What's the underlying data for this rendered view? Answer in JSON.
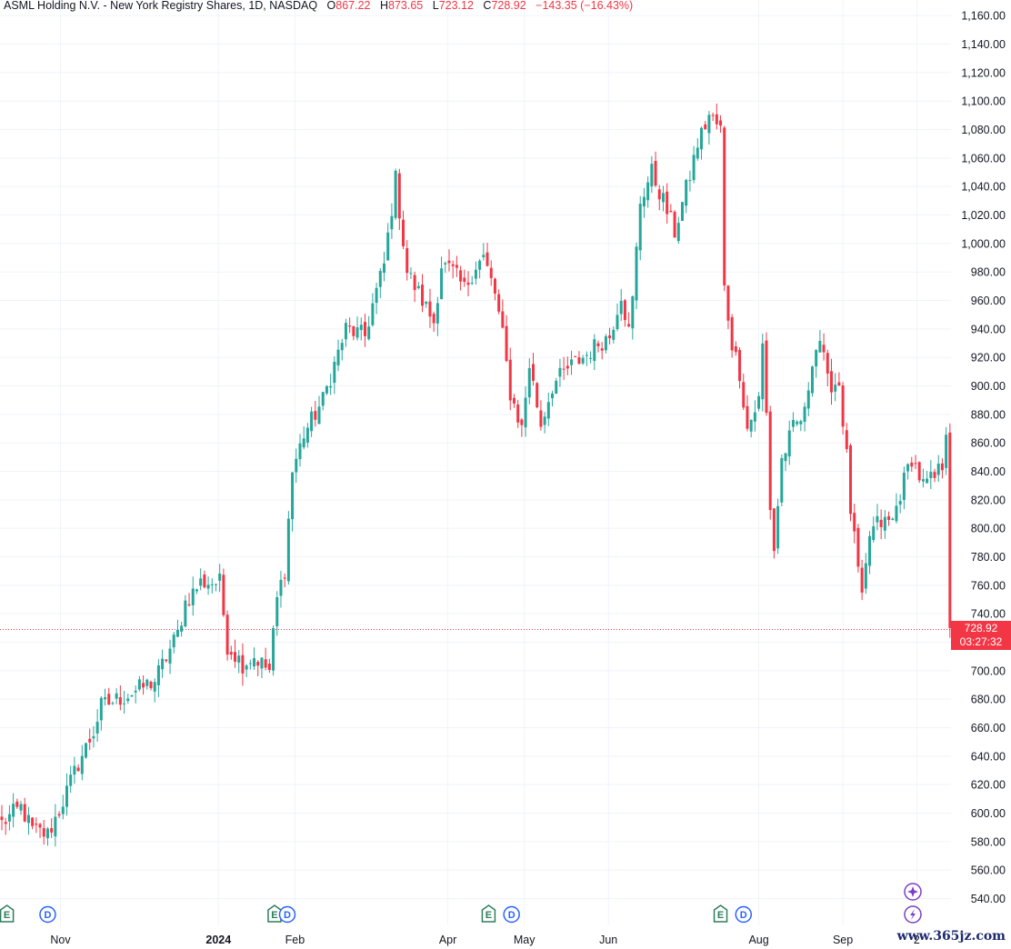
{
  "header": {
    "symbol": "ASML Holding N.V. - New York Registry Shares, 1D, NASDAQ",
    "open_label": "O",
    "open": "867.22",
    "high_label": "H",
    "high": "873.65",
    "low_label": "L",
    "low": "723.12",
    "close_label": "C",
    "close": "728.92",
    "change": "−143.35 (−16.43%)"
  },
  "last_price": {
    "price": "728.92",
    "countdown": "03:27:32",
    "value": 728.92
  },
  "watermark": "www.365jz.com",
  "colors": {
    "up": "#26a69a",
    "down": "#f23645",
    "grid": "#f0f3fa",
    "event_green": "#2e7d5b",
    "event_blue": "#2962ff",
    "event_purple": "#7b3fc4"
  },
  "chart_data": {
    "type": "candlestick",
    "title": "ASML Holding N.V. - New York Registry Shares, 1D, NASDAQ",
    "xlabel": "",
    "ylabel": "",
    "ylim": [
      530,
      1170
    ],
    "grid": true,
    "y_ticks": [
      "1,160.00",
      "1,140.00",
      "1,120.00",
      "1,100.00",
      "1,080.00",
      "1,060.00",
      "1,040.00",
      "1,020.00",
      "1,000.00",
      "980.00",
      "960.00",
      "940.00",
      "920.00",
      "900.00",
      "880.00",
      "860.00",
      "840.00",
      "820.00",
      "800.00",
      "780.00",
      "760.00",
      "740.00",
      "720.00",
      "700.00",
      "680.00",
      "660.00",
      "640.00",
      "620.00",
      "600.00",
      "580.00",
      "560.00",
      "540.00"
    ],
    "x_ticks": [
      {
        "label": "Nov",
        "date": "2023-11-01",
        "bold": false
      },
      {
        "label": "2024",
        "date": "2024-01-02",
        "bold": true
      },
      {
        "label": "Feb",
        "date": "2024-02-01",
        "bold": false
      },
      {
        "label": "Apr",
        "date": "2024-04-01",
        "bold": false
      },
      {
        "label": "May",
        "date": "2024-05-01",
        "bold": false
      },
      {
        "label": "Jun",
        "date": "2024-06-03",
        "bold": false
      },
      {
        "label": "Aug",
        "date": "2024-08-01",
        "bold": false
      },
      {
        "label": "Sep",
        "date": "2024-09-03",
        "bold": false
      },
      {
        "label": "2",
        "date": "2024-10-02",
        "bold": false
      }
    ],
    "events": [
      {
        "kind": "E",
        "date": "2023-10-11"
      },
      {
        "kind": "D",
        "date": "2023-10-27"
      },
      {
        "kind": "E",
        "date": "2024-01-24"
      },
      {
        "kind": "D",
        "date": "2024-01-29"
      },
      {
        "kind": "E",
        "date": "2024-04-17"
      },
      {
        "kind": "D",
        "date": "2024-04-26"
      },
      {
        "kind": "E",
        "date": "2024-07-17"
      },
      {
        "kind": "D",
        "date": "2024-07-26"
      }
    ],
    "series": [
      {
        "name": "ASML",
        "start_date": "2023-10-09",
        "end_date": "2024-10-15",
        "anchors": [
          [
            0,
            593
          ],
          [
            5,
            604
          ],
          [
            8,
            588
          ],
          [
            12,
            585
          ],
          [
            15,
            602
          ],
          [
            20,
            635
          ],
          [
            24,
            657
          ],
          [
            26,
            675
          ],
          [
            33,
            683
          ],
          [
            40,
            693
          ],
          [
            46,
            726
          ],
          [
            48,
            748
          ],
          [
            52,
            762
          ],
          [
            57,
            762
          ],
          [
            59,
            718
          ],
          [
            63,
            705
          ],
          [
            66,
            710
          ],
          [
            70,
            700
          ],
          [
            72,
            750
          ],
          [
            74,
            772
          ],
          [
            76,
            840
          ],
          [
            79,
            866
          ],
          [
            84,
            890
          ],
          [
            87,
            915
          ],
          [
            90,
            940
          ],
          [
            95,
            935
          ],
          [
            97,
            957
          ],
          [
            100,
            985
          ],
          [
            103,
            1045
          ],
          [
            106,
            980
          ],
          [
            110,
            960
          ],
          [
            113,
            945
          ],
          [
            115,
            985
          ],
          [
            118,
            980
          ],
          [
            121,
            968
          ],
          [
            124,
            985
          ],
          [
            126,
            990
          ],
          [
            129,
            965
          ],
          [
            131,
            935
          ],
          [
            133,
            895
          ],
          [
            136,
            870
          ],
          [
            138,
            915
          ],
          [
            141,
            873
          ],
          [
            144,
            900
          ],
          [
            148,
            912
          ],
          [
            153,
            922
          ],
          [
            156,
            930
          ],
          [
            159,
            935
          ],
          [
            162,
            965
          ],
          [
            164,
            938
          ],
          [
            165,
            960
          ],
          [
            167,
            1030
          ],
          [
            170,
            1050
          ],
          [
            173,
            1030
          ],
          [
            176,
            1008
          ],
          [
            180,
            1048
          ],
          [
            182,
            1070
          ],
          [
            185,
            1090
          ],
          [
            188,
            1080
          ],
          [
            189,
            968
          ],
          [
            191,
            930
          ],
          [
            193,
            910
          ],
          [
            195,
            870
          ],
          [
            198,
            890
          ],
          [
            199,
            928
          ],
          [
            200,
            880
          ],
          [
            201,
            815
          ],
          [
            202,
            785
          ],
          [
            204,
            848
          ],
          [
            207,
            870
          ],
          [
            210,
            880
          ],
          [
            212,
            920
          ],
          [
            214,
            933
          ],
          [
            216,
            902
          ],
          [
            219,
            902
          ],
          [
            221,
            850
          ],
          [
            222,
            813
          ],
          [
            224,
            770
          ],
          [
            225,
            748
          ],
          [
            227,
            795
          ],
          [
            229,
            803
          ],
          [
            233,
            805
          ],
          [
            235,
            825
          ],
          [
            238,
            850
          ],
          [
            241,
            830
          ],
          [
            244,
            835
          ],
          [
            246,
            845
          ],
          [
            247,
            871
          ],
          [
            248,
            730
          ]
        ]
      }
    ]
  }
}
